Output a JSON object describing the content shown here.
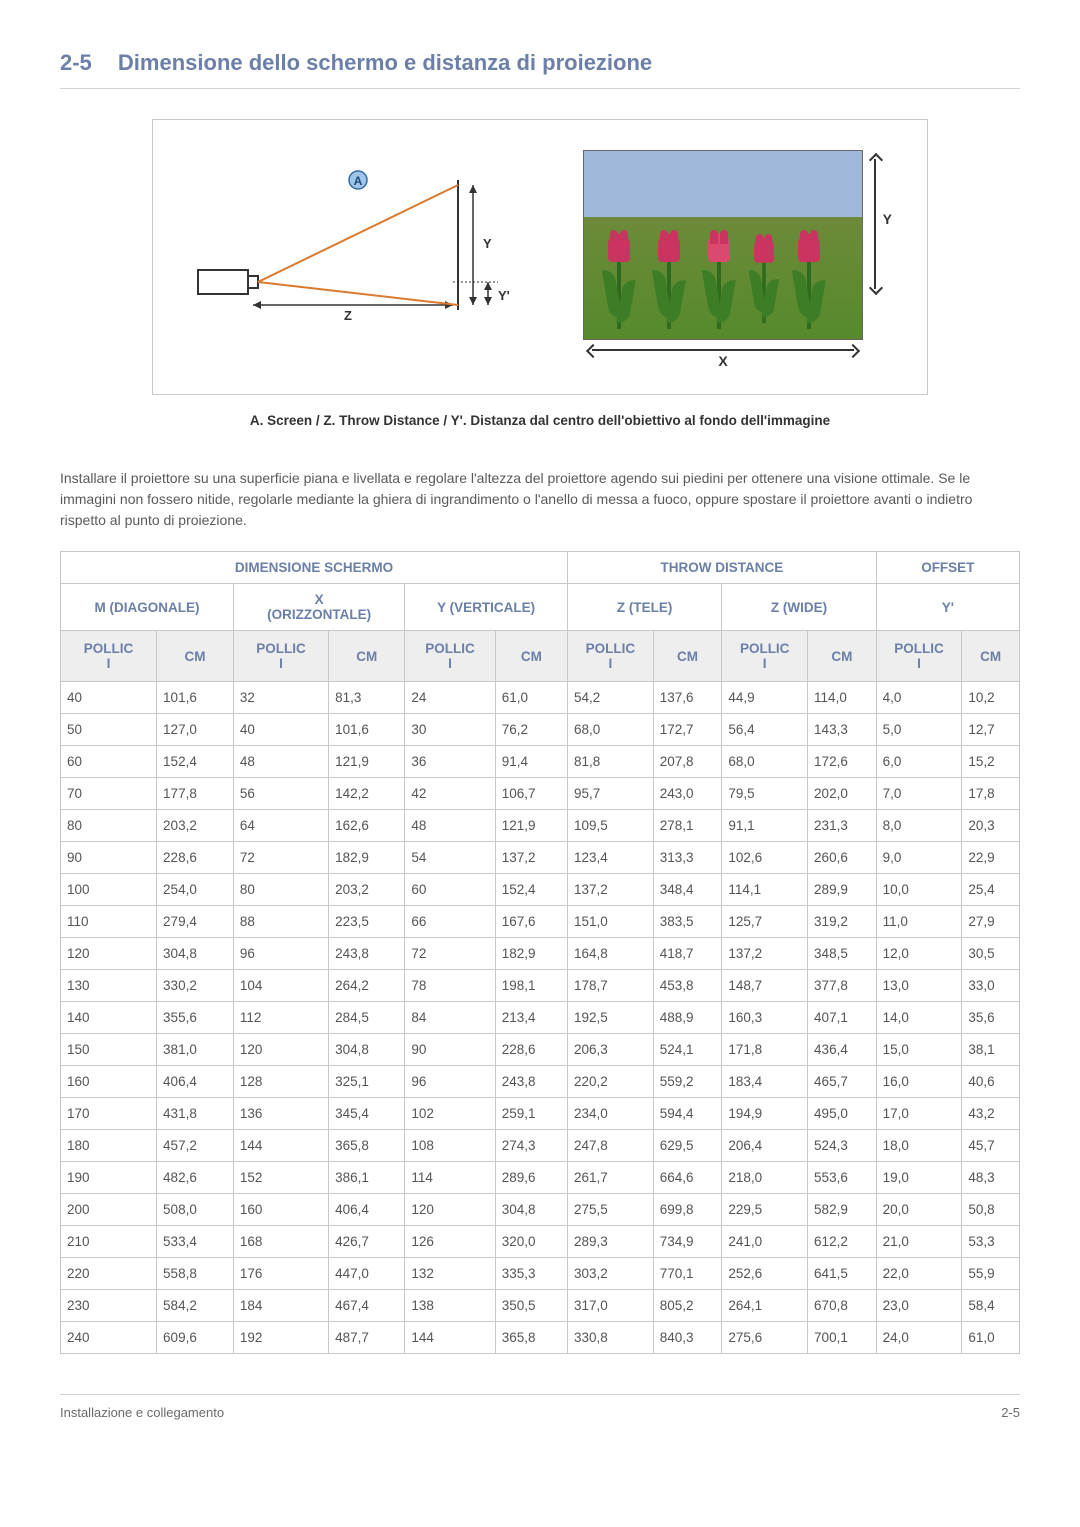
{
  "section": {
    "number": "2-5",
    "title": "Dimensione dello schermo e distanza di proiezione"
  },
  "diagram": {
    "caption": "A. Screen / Z. Throw Distance / Y'. Distanza dal centro dell'obiettivo al fondo dell'immagine",
    "labels": {
      "A": "A",
      "Z": "Z",
      "Y": "Y",
      "Yprime": "Y'",
      "X": "X"
    },
    "colors": {
      "line_orange": "#d97a2e",
      "border": "#c8c8c8",
      "text": "#333333",
      "sky": "#9fb8d8",
      "grass": "#568a2c",
      "tulip": "#c93560",
      "stem": "#2e6b1e"
    }
  },
  "paragraph": "Installare il proiettore su una superficie piana e livellata e regolare l'altezza del proiettore agendo sui piedini per ottenere una visione ottimale. Se le immagini non fossero nitide, regolarle mediante la ghiera di ingrandimento o l'anello di messa a fuoco, oppure spostare il proiettore avanti o indietro rispetto al punto di proiezione.",
  "table": {
    "group_headers": {
      "screen": "DIMENSIONE SCHERMO",
      "throw": "THROW DISTANCE",
      "offset": "OFFSET"
    },
    "mid_headers": {
      "m_diag": "M (DIAGONALE)",
      "x_horiz_line1": "X",
      "x_horiz_line2": "(ORIZZONTALE)",
      "y_vert": "Y (VERTICALE)",
      "z_tele": "Z (TELE)",
      "z_wide": "Z (WIDE)",
      "yprime": "Y'"
    },
    "unit_headers": {
      "pollic": "POLLIC",
      "i": "I",
      "cm": "CM"
    },
    "header_bg": "#eeeeee",
    "header_color": "#6b7fa8",
    "border_color": "#c8c8c8",
    "rows": [
      [
        "40",
        "101,6",
        "32",
        "81,3",
        "24",
        "61,0",
        "54,2",
        "137,6",
        "44,9",
        "114,0",
        "4,0",
        "10,2"
      ],
      [
        "50",
        "127,0",
        "40",
        "101,6",
        "30",
        "76,2",
        "68,0",
        "172,7",
        "56,4",
        "143,3",
        "5,0",
        "12,7"
      ],
      [
        "60",
        "152,4",
        "48",
        "121,9",
        "36",
        "91,4",
        "81,8",
        "207,8",
        "68,0",
        "172,6",
        "6,0",
        "15,2"
      ],
      [
        "70",
        "177,8",
        "56",
        "142,2",
        "42",
        "106,7",
        "95,7",
        "243,0",
        "79,5",
        "202,0",
        "7,0",
        "17,8"
      ],
      [
        "80",
        "203,2",
        "64",
        "162,6",
        "48",
        "121,9",
        "109,5",
        "278,1",
        "91,1",
        "231,3",
        "8,0",
        "20,3"
      ],
      [
        "90",
        "228,6",
        "72",
        "182,9",
        "54",
        "137,2",
        "123,4",
        "313,3",
        "102,6",
        "260,6",
        "9,0",
        "22,9"
      ],
      [
        "100",
        "254,0",
        "80",
        "203,2",
        "60",
        "152,4",
        "137,2",
        "348,4",
        "114,1",
        "289,9",
        "10,0",
        "25,4"
      ],
      [
        "110",
        "279,4",
        "88",
        "223,5",
        "66",
        "167,6",
        "151,0",
        "383,5",
        "125,7",
        "319,2",
        "11,0",
        "27,9"
      ],
      [
        "120",
        "304,8",
        "96",
        "243,8",
        "72",
        "182,9",
        "164,8",
        "418,7",
        "137,2",
        "348,5",
        "12,0",
        "30,5"
      ],
      [
        "130",
        "330,2",
        "104",
        "264,2",
        "78",
        "198,1",
        "178,7",
        "453,8",
        "148,7",
        "377,8",
        "13,0",
        "33,0"
      ],
      [
        "140",
        "355,6",
        "112",
        "284,5",
        "84",
        "213,4",
        "192,5",
        "488,9",
        "160,3",
        "407,1",
        "14,0",
        "35,6"
      ],
      [
        "150",
        "381,0",
        "120",
        "304,8",
        "90",
        "228,6",
        "206,3",
        "524,1",
        "171,8",
        "436,4",
        "15,0",
        "38,1"
      ],
      [
        "160",
        "406,4",
        "128",
        "325,1",
        "96",
        "243,8",
        "220,2",
        "559,2",
        "183,4",
        "465,7",
        "16,0",
        "40,6"
      ],
      [
        "170",
        "431,8",
        "136",
        "345,4",
        "102",
        "259,1",
        "234,0",
        "594,4",
        "194,9",
        "495,0",
        "17,0",
        "43,2"
      ],
      [
        "180",
        "457,2",
        "144",
        "365,8",
        "108",
        "274,3",
        "247,8",
        "629,5",
        "206,4",
        "524,3",
        "18,0",
        "45,7"
      ],
      [
        "190",
        "482,6",
        "152",
        "386,1",
        "114",
        "289,6",
        "261,7",
        "664,6",
        "218,0",
        "553,6",
        "19,0",
        "48,3"
      ],
      [
        "200",
        "508,0",
        "160",
        "406,4",
        "120",
        "304,8",
        "275,5",
        "699,8",
        "229,5",
        "582,9",
        "20,0",
        "50,8"
      ],
      [
        "210",
        "533,4",
        "168",
        "426,7",
        "126",
        "320,0",
        "289,3",
        "734,9",
        "241,0",
        "612,2",
        "21,0",
        "53,3"
      ],
      [
        "220",
        "558,8",
        "176",
        "447,0",
        "132",
        "335,3",
        "303,2",
        "770,1",
        "252,6",
        "641,5",
        "22,0",
        "55,9"
      ],
      [
        "230",
        "584,2",
        "184",
        "467,4",
        "138",
        "350,5",
        "317,0",
        "805,2",
        "264,1",
        "670,8",
        "23,0",
        "58,4"
      ],
      [
        "240",
        "609,6",
        "192",
        "487,7",
        "144",
        "365,8",
        "330,8",
        "840,3",
        "275,6",
        "700,1",
        "24,0",
        "61,0"
      ]
    ]
  },
  "footer": {
    "left": "Installazione e collegamento",
    "right": "2-5"
  }
}
